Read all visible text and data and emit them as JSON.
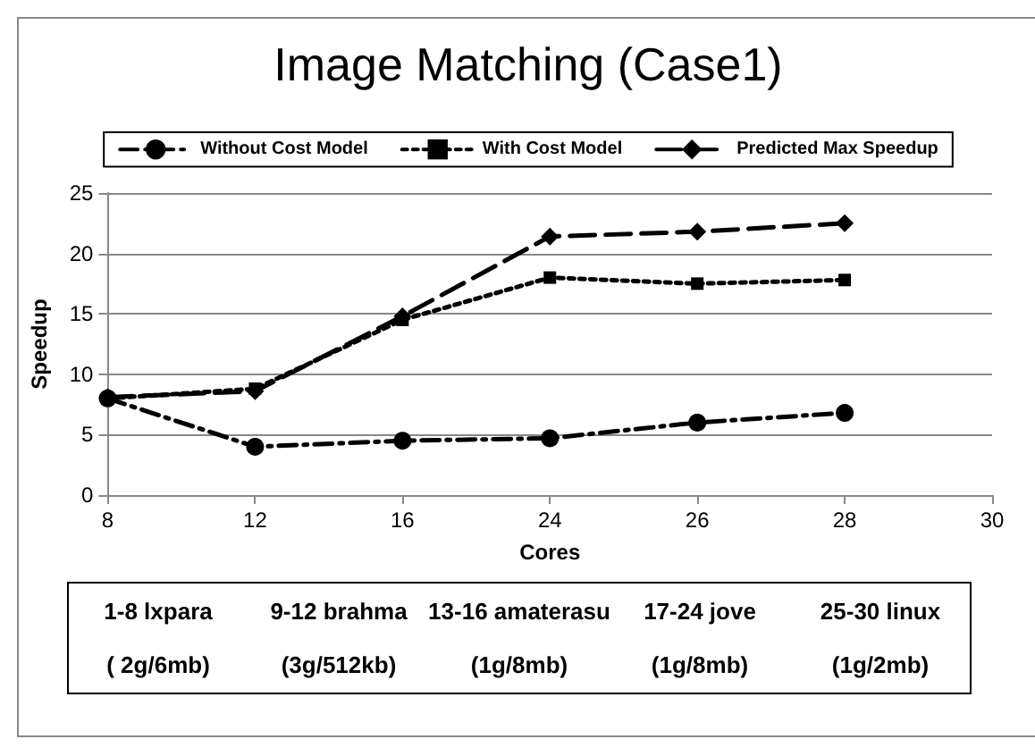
{
  "chart_data": {
    "type": "line",
    "title": "Image Matching (Case1)",
    "xlabel": "Cores",
    "ylabel": "Speedup",
    "categories": [
      "8",
      "12",
      "16",
      "24",
      "26",
      "28",
      "30"
    ],
    "series": [
      {
        "name": "Without Cost Model",
        "color": "#000000",
        "marker": "circle",
        "line_style": "dashdot",
        "values": [
          8,
          4,
          4.5,
          4.7,
          6,
          6.8,
          null
        ]
      },
      {
        "name": "With Cost Model",
        "color": "#000000",
        "marker": "square",
        "line_style": "dotted",
        "values": [
          8,
          8.8,
          14.5,
          18,
          17.5,
          17.8,
          null
        ]
      },
      {
        "name": "Predicted Max Speedup",
        "color": "#000000",
        "marker": "diamond",
        "line_style": "dashed",
        "values": [
          8.1,
          8.6,
          14.8,
          21.4,
          21.8,
          22.5,
          null
        ]
      }
    ],
    "ylim": [
      0,
      25
    ],
    "yticks": [
      0,
      5,
      10,
      15,
      20,
      25
    ],
    "grid": "y",
    "legend": "top",
    "annotations": [
      "1-8 lxpara",
      "( 2g/6mb)",
      "9-12 brahma",
      "(3g/512kb)",
      "13-16 amaterasu",
      "(1g/8mb)",
      "17-24 jove",
      "(1g/8mb)",
      "25-30 linux",
      "(1g/2mb)"
    ]
  }
}
